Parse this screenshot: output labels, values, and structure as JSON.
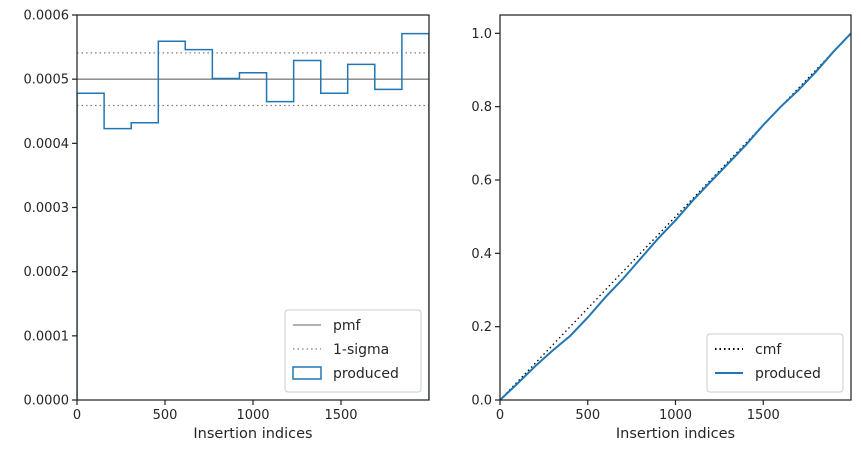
{
  "chart_data": [
    {
      "type": "line",
      "subtype": "step-histogram",
      "xlabel": "Insertion indices",
      "ylabel": "",
      "xlim": [
        0,
        2000
      ],
      "ylim": [
        0,
        0.0006
      ],
      "xticks": [
        0,
        500,
        1000,
        1500
      ],
      "yticks": [
        0,
        0.0001,
        0.0002,
        0.0003,
        0.0004,
        0.0005,
        0.0006
      ],
      "ytick_labels": [
        "0.0000",
        "0.0001",
        "0.0002",
        "0.0003",
        "0.0004",
        "0.0005",
        "0.0006"
      ],
      "grid": false,
      "legend": "lower right",
      "bin_edges": [
        0,
        154,
        308,
        462,
        615,
        769,
        923,
        1077,
        1231,
        1385,
        1538,
        1692,
        1846,
        2000
      ],
      "series": [
        {
          "name": "pmf",
          "style": "solid",
          "color": "#808080",
          "value": 0.0005
        },
        {
          "name": "1-sigma",
          "style": "dotted",
          "color": "#808080",
          "values": [
            0.000459,
            0.000541
          ]
        },
        {
          "name": "produced",
          "style": "step",
          "color": "#1f77b4",
          "values": [
            0.000478,
            0.000423,
            0.000432,
            0.000559,
            0.000546,
            0.000501,
            0.00051,
            0.000465,
            0.000529,
            0.000478,
            0.000523,
            0.000484,
            0.000571
          ]
        }
      ]
    },
    {
      "type": "line",
      "xlabel": "Insertion indices",
      "ylabel": "",
      "xlim": [
        0,
        2000
      ],
      "ylim": [
        0,
        1.05
      ],
      "xticks": [
        0,
        500,
        1000,
        1500
      ],
      "yticks": [
        0.0,
        0.2,
        0.4,
        0.6,
        0.8,
        1.0
      ],
      "ytick_labels": [
        "0.0",
        "0.2",
        "0.4",
        "0.6",
        "0.8",
        "1.0"
      ],
      "grid": false,
      "legend": "lower right",
      "series": [
        {
          "name": "cmf",
          "style": "dotted",
          "color": "#000000",
          "x": [
            0,
            2000
          ],
          "y": [
            0,
            1.0
          ]
        },
        {
          "name": "produced",
          "style": "solid",
          "color": "#1f77b4",
          "x": [
            0,
            100,
            200,
            300,
            400,
            500,
            600,
            700,
            800,
            900,
            1000,
            1100,
            1200,
            1300,
            1400,
            1500,
            1600,
            1700,
            1800,
            1900,
            2000
          ],
          "y": [
            0,
            0.045,
            0.092,
            0.135,
            0.175,
            0.225,
            0.28,
            0.33,
            0.385,
            0.44,
            0.49,
            0.545,
            0.595,
            0.645,
            0.695,
            0.75,
            0.8,
            0.845,
            0.895,
            0.95,
            1.0
          ]
        }
      ]
    }
  ]
}
